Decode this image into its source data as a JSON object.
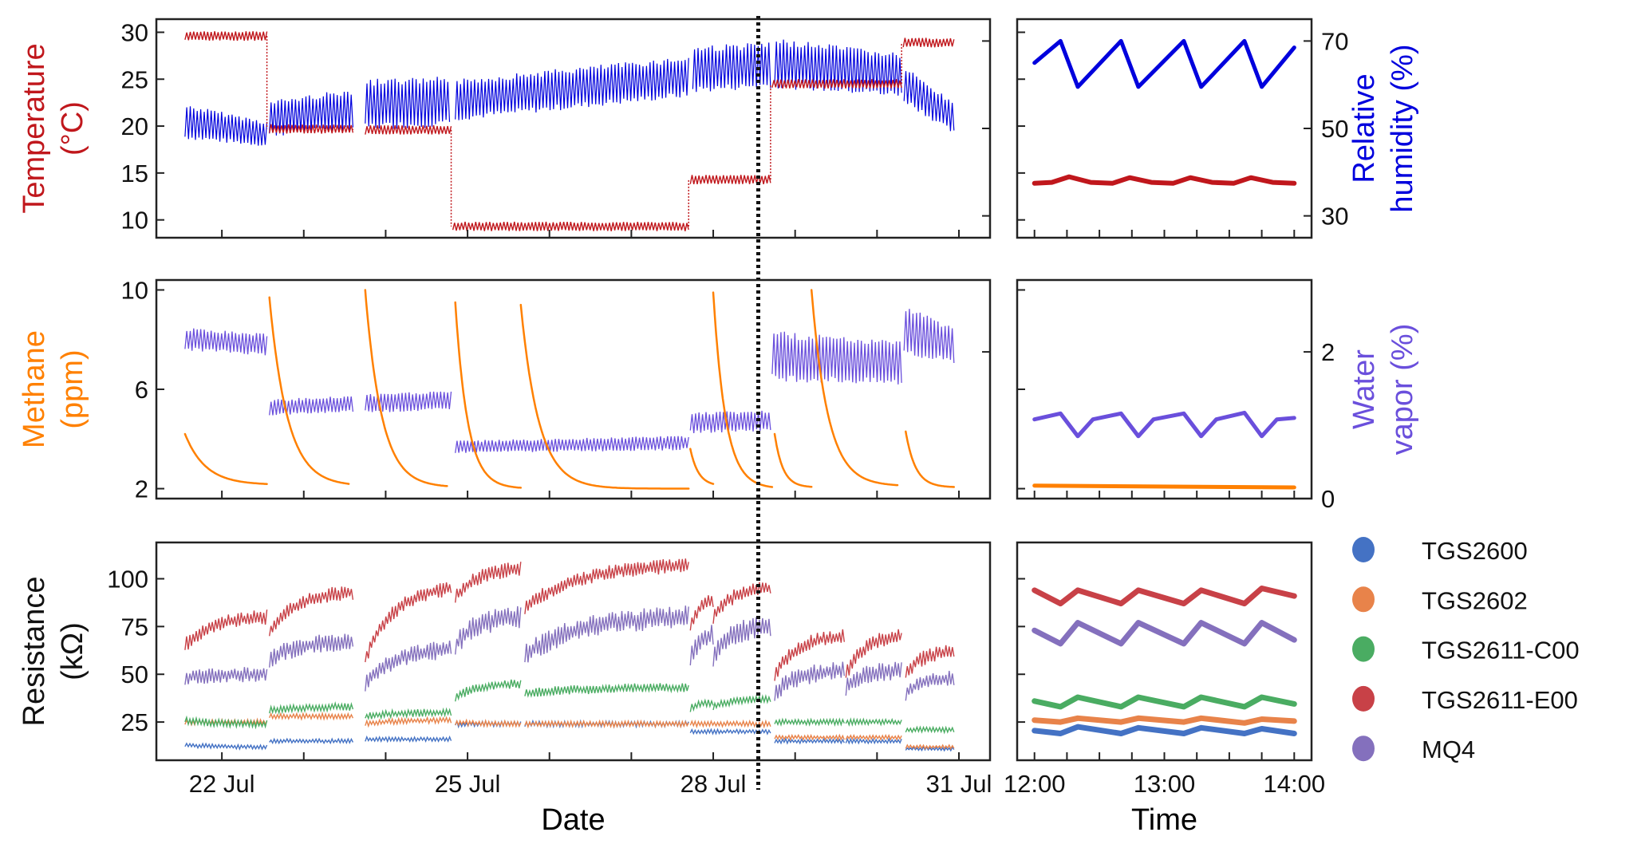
{
  "chart_data": [
    {
      "panel": "top-left",
      "type": "scatter",
      "xlabel": "",
      "xlim": [
        21.2,
        31.38
      ],
      "ylabel_left": [
        "Temperature",
        "(°C)"
      ],
      "ylim_left": [
        8.1,
        31.4
      ],
      "yticks_left": [
        "10",
        "15",
        "20",
        "25",
        "30"
      ],
      "ylabel_right": [
        "Relative",
        "humidity (%)"
      ],
      "ylim_right": [
        25,
        75
      ],
      "yticks_right": [
        "30",
        "50",
        "70"
      ],
      "temperature_segments": [
        [
          21.55,
          22.55,
          29.6
        ],
        [
          22.58,
          23.6,
          19.7
        ],
        [
          23.75,
          24.8,
          19.6
        ],
        [
          24.82,
          27.7,
          9.3
        ],
        [
          27.72,
          28.7,
          14.3
        ],
        [
          28.72,
          30.3,
          24.5
        ],
        [
          30.32,
          30.94,
          28.9
        ]
      ],
      "humidity_segments": [
        [
          21.55,
          22.55,
          47.5,
          55.6,
          45.8,
          51.7
        ],
        [
          22.58,
          23.6,
          48.1,
          56.4,
          49.6,
          59.2
        ],
        [
          23.75,
          24.78,
          49.6,
          61.3,
          50.4,
          61.9
        ],
        [
          24.85,
          27.7,
          51.7,
          61.3,
          57.1,
          66.6
        ],
        [
          27.75,
          28.7,
          58.1,
          69.0,
          59.2,
          69.8
        ],
        [
          28.75,
          30.3,
          59.2,
          70.7,
          57.1,
          67.3
        ],
        [
          30.33,
          30.94,
          56.0,
          64.3,
          48.5,
          56.0
        ]
      ]
    },
    {
      "panel": "middle-left",
      "type": "scatter",
      "ylabel_left": [
        "Methane",
        "(ppm)"
      ],
      "ylim_left": [
        1.6,
        10.4
      ],
      "yticks_left": [
        "2",
        "6",
        "10"
      ],
      "ylabel_right": [
        "Water",
        "vapor (%)"
      ],
      "ylim_right": [
        0,
        2.98
      ],
      "yticks_right": [
        "0",
        "2"
      ],
      "methane_events": [
        [
          21.55,
          22.55,
          4.2,
          2.15,
          0.25
        ],
        [
          22.58,
          23.55,
          9.7,
          2.1,
          0.22
        ],
        [
          23.75,
          24.75,
          10.0,
          2.05,
          0.2
        ],
        [
          24.85,
          25.65,
          9.5,
          2.0,
          0.15
        ],
        [
          25.65,
          27.7,
          9.4,
          2.0,
          0.22
        ],
        [
          27.72,
          28.0,
          3.6,
          2.1,
          0.1
        ],
        [
          28.0,
          28.72,
          9.9,
          2.0,
          0.15
        ],
        [
          28.75,
          29.2,
          4.2,
          2.05,
          0.1
        ],
        [
          29.2,
          30.25,
          10.0,
          2.1,
          0.2
        ],
        [
          30.35,
          30.94,
          4.3,
          2.05,
          0.12
        ]
      ],
      "vapor_segments": [
        [
          21.55,
          22.55,
          2.02,
          2.33,
          1.95,
          2.25
        ],
        [
          22.58,
          23.6,
          1.13,
          1.35,
          1.18,
          1.41
        ],
        [
          23.75,
          24.8,
          1.17,
          1.42,
          1.2,
          1.48
        ],
        [
          24.85,
          27.7,
          0.62,
          0.79,
          0.66,
          0.86
        ],
        [
          27.72,
          28.7,
          0.89,
          1.18,
          0.92,
          1.2
        ],
        [
          28.72,
          30.3,
          1.6,
          2.29,
          1.54,
          2.15
        ],
        [
          30.33,
          30.94,
          1.92,
          2.64,
          1.84,
          2.35
        ]
      ]
    },
    {
      "panel": "bottom-left",
      "type": "scatter",
      "xlabel": "Date",
      "xticks": [
        {
          "value": 22,
          "label": "22 Jul"
        },
        {
          "value": 25,
          "label": "25 Jul"
        },
        {
          "value": 28,
          "label": "28 Jul"
        },
        {
          "value": 31,
          "label": "31 Jul"
        }
      ],
      "ylabel_left": [
        "Resistance",
        "(kΩ)"
      ],
      "ylim_left": [
        5,
        119
      ],
      "yticks_left": [
        "25",
        "50",
        "75",
        "100"
      ],
      "marker_date": 28.55,
      "series": [
        {
          "name": "TGS2600",
          "color": "#4472c4",
          "segments": [
            [
              21.55,
              22.55,
              13,
              12,
              1.2
            ],
            [
              22.58,
              23.6,
              15,
              15,
              1.2
            ],
            [
              23.75,
              24.8,
              16,
              16,
              1.2
            ],
            [
              24.85,
              25.65,
              24,
              24,
              1.5
            ],
            [
              25.7,
              27.7,
              24,
              24,
              1.5
            ],
            [
              27.72,
              28.7,
              20,
              20,
              1.2
            ],
            [
              28.75,
              29.6,
              15,
              15,
              1.2
            ],
            [
              29.62,
              30.3,
              15,
              15,
              1.2
            ],
            [
              30.35,
              30.94,
              11,
              11,
              1
            ]
          ]
        },
        {
          "name": "TGS2602",
          "color": "#e8834a",
          "segments": [
            [
              21.55,
              22.55,
              25,
              25,
              1.5
            ],
            [
              22.58,
              23.6,
              28,
              28,
              1.5
            ],
            [
              23.75,
              24.8,
              24,
              26,
              1.5
            ],
            [
              24.85,
              25.65,
              25,
              24,
              1.5
            ],
            [
              25.7,
              27.7,
              24,
              24,
              1.5
            ],
            [
              27.72,
              28.7,
              24,
              24,
              1.5
            ],
            [
              28.75,
              29.6,
              17,
              17,
              1.2
            ],
            [
              29.62,
              30.3,
              17,
              17,
              1.2
            ],
            [
              30.35,
              30.94,
              12,
              12,
              1
            ]
          ]
        },
        {
          "name": "TGS2611-C00",
          "color": "#4aac62",
          "segments": [
            [
              21.55,
              22.55,
              26,
              24,
              2
            ],
            [
              22.58,
              23.6,
              31,
              33,
              2
            ],
            [
              23.75,
              24.8,
              28,
              30,
              2
            ],
            [
              24.85,
              25.65,
              38,
              45,
              2.5
            ],
            [
              25.7,
              27.7,
              40,
              43,
              2.5
            ],
            [
              27.72,
              28.0,
              32,
              35,
              2
            ],
            [
              28.0,
              28.7,
              33,
              37,
              2
            ],
            [
              28.75,
              29.6,
              25,
              25,
              1.5
            ],
            [
              29.62,
              30.3,
              25,
              25,
              1.5
            ],
            [
              30.35,
              30.94,
              21,
              21,
              1.5
            ]
          ]
        },
        {
          "name": "TGS2611-E00",
          "color": "#c84147",
          "segments": [
            [
              21.55,
              22.55,
              65,
              80,
              4
            ],
            [
              22.58,
              23.6,
              72,
              93,
              4
            ],
            [
              23.75,
              24.8,
              58,
              95,
              4
            ],
            [
              24.85,
              25.65,
              90,
              105,
              4
            ],
            [
              25.7,
              27.7,
              85,
              107,
              4
            ],
            [
              27.72,
              28.0,
              75,
              88,
              4
            ],
            [
              28.0,
              28.7,
              80,
              95,
              4
            ],
            [
              28.75,
              29.6,
              50,
              70,
              4
            ],
            [
              29.62,
              30.3,
              50,
              70,
              4
            ],
            [
              30.35,
              30.94,
              50,
              62,
              4
            ]
          ]
        },
        {
          "name": "MQ4",
          "color": "#8470bd",
          "segments": [
            [
              21.55,
              22.55,
              48,
              50,
              4
            ],
            [
              22.58,
              23.6,
              58,
              67,
              5
            ],
            [
              23.75,
              24.8,
              45,
              63,
              5
            ],
            [
              24.85,
              25.65,
              65,
              80,
              6
            ],
            [
              25.7,
              27.7,
              60,
              80,
              6
            ],
            [
              27.72,
              28.0,
              60,
              70,
              6
            ],
            [
              28.0,
              28.7,
              60,
              75,
              6
            ],
            [
              28.75,
              29.6,
              40,
              52,
              5
            ],
            [
              29.62,
              30.3,
              43,
              52,
              5
            ],
            [
              30.35,
              30.94,
              40,
              48,
              4
            ]
          ]
        }
      ]
    },
    {
      "panel": "top-right",
      "type": "scatter",
      "xlim_minutes_from_12": [
        -8,
        128
      ],
      "temperature": [
        [
          0,
          13.9
        ],
        [
          8,
          14.0
        ],
        [
          16,
          14.6
        ],
        [
          26,
          14.0
        ],
        [
          36,
          13.9
        ],
        [
          44,
          14.5
        ],
        [
          54,
          14.0
        ],
        [
          64,
          13.9
        ],
        [
          72,
          14.5
        ],
        [
          82,
          14.0
        ],
        [
          92,
          13.9
        ],
        [
          100,
          14.5
        ],
        [
          110,
          14.0
        ],
        [
          120,
          13.9
        ]
      ],
      "humidity": [
        [
          0,
          65
        ],
        [
          12,
          70
        ],
        [
          20,
          59.5
        ],
        [
          40,
          70
        ],
        [
          48,
          59.5
        ],
        [
          69,
          70
        ],
        [
          77,
          59.5
        ],
        [
          97,
          70
        ],
        [
          105,
          59.5
        ],
        [
          120,
          68.5
        ]
      ]
    },
    {
      "panel": "middle-right",
      "type": "scatter",
      "methane": [
        [
          0,
          2.12
        ],
        [
          120,
          2.05
        ]
      ],
      "vapor": [
        [
          0,
          1.08
        ],
        [
          12,
          1.16
        ],
        [
          20,
          0.85
        ],
        [
          27,
          1.08
        ],
        [
          40,
          1.16
        ],
        [
          48,
          0.85
        ],
        [
          55,
          1.08
        ],
        [
          69,
          1.16
        ],
        [
          77,
          0.85
        ],
        [
          84,
          1.08
        ],
        [
          97,
          1.17
        ],
        [
          105,
          0.85
        ],
        [
          112,
          1.08
        ],
        [
          120,
          1.1
        ]
      ]
    },
    {
      "panel": "bottom-right",
      "type": "line",
      "xlabel": "Time",
      "xticks": [
        {
          "minutes": 0,
          "label": "12:00"
        },
        {
          "minutes": 60,
          "label": "13:00"
        },
        {
          "minutes": 120,
          "label": "14:00"
        }
      ],
      "series": [
        {
          "name": "TGS2600",
          "values": [
            [
              0,
              20.5
            ],
            [
              12,
              19
            ],
            [
              20,
              22.5
            ],
            [
              40,
              19
            ],
            [
              48,
              22
            ],
            [
              69,
              19
            ],
            [
              77,
              22
            ],
            [
              97,
              19
            ],
            [
              105,
              21.5
            ],
            [
              120,
              19
            ]
          ]
        },
        {
          "name": "TGS2602",
          "values": [
            [
              0,
              26
            ],
            [
              12,
              25
            ],
            [
              20,
              27
            ],
            [
              40,
              25
            ],
            [
              48,
              27
            ],
            [
              69,
              25
            ],
            [
              77,
              27
            ],
            [
              97,
              24.5
            ],
            [
              105,
              26.5
            ],
            [
              120,
              25.5
            ]
          ]
        },
        {
          "name": "TGS2611-C00",
          "values": [
            [
              0,
              36
            ],
            [
              12,
              33
            ],
            [
              20,
              38
            ],
            [
              40,
              33
            ],
            [
              48,
              38
            ],
            [
              69,
              33
            ],
            [
              77,
              38
            ],
            [
              97,
              33
            ],
            [
              105,
              38
            ],
            [
              120,
              34.5
            ]
          ]
        },
        {
          "name": "TGS2611-E00",
          "values": [
            [
              0,
              94
            ],
            [
              12,
              87
            ],
            [
              20,
              94
            ],
            [
              40,
              87
            ],
            [
              48,
              94
            ],
            [
              69,
              87
            ],
            [
              77,
              94
            ],
            [
              97,
              87
            ],
            [
              105,
              95
            ],
            [
              120,
              91
            ]
          ]
        },
        {
          "name": "MQ4",
          "values": [
            [
              0,
              73
            ],
            [
              12,
              66
            ],
            [
              20,
              77
            ],
            [
              40,
              66
            ],
            [
              48,
              77
            ],
            [
              69,
              66
            ],
            [
              77,
              77
            ],
            [
              97,
              66
            ],
            [
              105,
              77
            ],
            [
              120,
              68
            ]
          ]
        }
      ]
    }
  ],
  "legend": [
    {
      "label": "TGS2600",
      "color": "#4472c4"
    },
    {
      "label": "TGS2602",
      "color": "#e8834a"
    },
    {
      "label": "TGS2611-C00",
      "color": "#4aac62"
    },
    {
      "label": "TGS2611-E00",
      "color": "#c84147"
    },
    {
      "label": "MQ4",
      "color": "#8470bd"
    }
  ],
  "colors": {
    "temperature": "#c0171c",
    "humidity": "#0000dd",
    "methane": "#ff8000",
    "vapor": "#6a4fdc"
  }
}
